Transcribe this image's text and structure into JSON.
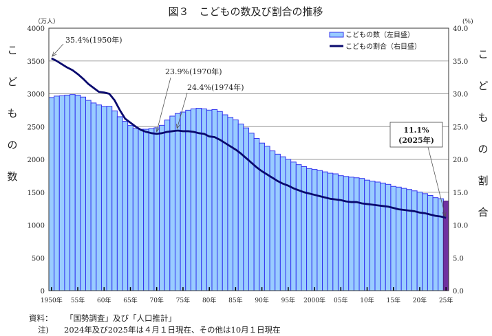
{
  "chart_data": {
    "type": "bar+line",
    "title": "図３　こどもの数及び割合の推移",
    "left_unit": "（万人）",
    "right_unit": "(%)",
    "ylabel_left": "こどもの数",
    "ylabel_right": "こどもの割合",
    "ylim_left": [
      0,
      4000
    ],
    "ylim_right": [
      0,
      40
    ],
    "left_ticks": [
      "0",
      "500",
      "1000",
      "1500",
      "2000",
      "2500",
      "3000",
      "3500",
      "4000"
    ],
    "right_ticks": [
      "0.0",
      "5.0",
      "10.0",
      "15.0",
      "20.0",
      "25.0",
      "30.0",
      "35.0",
      "40.0"
    ],
    "grid": true,
    "legend_placement": "top-right",
    "legend": [
      "こどもの数（左目盛）",
      "こどもの割合（右目盛）"
    ],
    "x_tick_labels": [
      {
        "year": 1950,
        "label": "1950年"
      },
      {
        "year": 1955,
        "label": "55年"
      },
      {
        "year": 1960,
        "label": "60年"
      },
      {
        "year": 1965,
        "label": "65年"
      },
      {
        "year": 1970,
        "label": "70年"
      },
      {
        "year": 1975,
        "label": "75年"
      },
      {
        "year": 1980,
        "label": "80年"
      },
      {
        "year": 1985,
        "label": "85年"
      },
      {
        "year": 1990,
        "label": "90年"
      },
      {
        "year": 1995,
        "label": "95年"
      },
      {
        "year": 2000,
        "label": "2000年"
      },
      {
        "year": 2005,
        "label": "05年"
      },
      {
        "year": 2010,
        "label": "10年"
      },
      {
        "year": 2015,
        "label": "15年"
      },
      {
        "year": 2020,
        "label": "20年"
      },
      {
        "year": 2025,
        "label": "25年"
      }
    ],
    "start_year": 1950,
    "series": [
      {
        "name": "こどもの数（左目盛）",
        "type": "bar",
        "color": "#99ccff",
        "edge": "#3333ee",
        "highlight_color": "#7030a0",
        "values": [
          2943,
          2965,
          2970,
          2980,
          2988,
          2980,
          2950,
          2900,
          2860,
          2830,
          2807,
          2810,
          2740,
          2650,
          2580,
          2517,
          2470,
          2460,
          2460,
          2470,
          2482,
          2520,
          2600,
          2660,
          2700,
          2722,
          2750,
          2770,
          2780,
          2770,
          2751,
          2760,
          2730,
          2680,
          2640,
          2603,
          2540,
          2480,
          2400,
          2320,
          2249,
          2200,
          2130,
          2080,
          2040,
          2001,
          1960,
          1920,
          1890,
          1860,
          1847,
          1830,
          1810,
          1790,
          1780,
          1752,
          1740,
          1730,
          1720,
          1710,
          1684,
          1670,
          1655,
          1640,
          1620,
          1589,
          1578,
          1559,
          1542,
          1521,
          1503,
          1478,
          1450,
          1417,
          1401,
          1366
        ]
      },
      {
        "name": "こどもの割合（右目盛）",
        "type": "line",
        "color": "#0a0a6e",
        "values": [
          35.4,
          35.0,
          34.5,
          34.0,
          33.6,
          33.0,
          32.3,
          31.5,
          30.9,
          30.3,
          30.2,
          30.0,
          29.0,
          27.5,
          26.2,
          25.6,
          25.0,
          24.5,
          24.2,
          24.0,
          23.9,
          24.0,
          24.2,
          24.3,
          24.4,
          24.3,
          24.3,
          24.2,
          24.0,
          23.9,
          23.5,
          23.4,
          23.0,
          22.5,
          22.0,
          21.5,
          20.9,
          20.2,
          19.5,
          18.8,
          18.2,
          17.7,
          17.2,
          16.7,
          16.3,
          16.0,
          15.6,
          15.3,
          15.0,
          14.8,
          14.6,
          14.4,
          14.2,
          14.0,
          13.9,
          13.8,
          13.6,
          13.5,
          13.5,
          13.3,
          13.2,
          13.1,
          13.0,
          12.9,
          12.8,
          12.6,
          12.4,
          12.3,
          12.2,
          12.1,
          11.9,
          11.8,
          11.6,
          11.4,
          11.3,
          11.1
        ]
      }
    ],
    "annotations": [
      {
        "text": "35.4%(1950年)",
        "year": 1950,
        "value": 35.4
      },
      {
        "text": "23.9%(1970年)",
        "year": 1970,
        "value": 23.9
      },
      {
        "text": "24.4%(1974年)",
        "year": 1974,
        "value": 24.4
      },
      {
        "text": "11.1%",
        "text2": "(2025年)",
        "year": 2025,
        "value": 11.1,
        "boxed": true
      }
    ]
  },
  "notes": {
    "source_label": "資料：",
    "source": "「国勢調査」及び「人口推計」",
    "note_label": "注)",
    "note": "2024年及び2025年は４月１日現在、その他は10月１日現在"
  }
}
